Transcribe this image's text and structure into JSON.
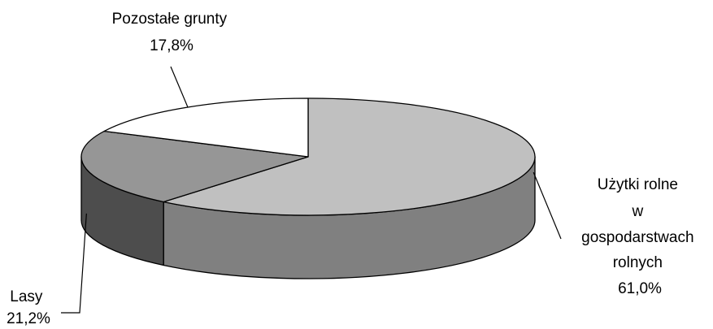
{
  "chart_data": {
    "type": "pie",
    "style": "3d",
    "slices": [
      {
        "label_lines": [
          "Użytki rolne",
          "w",
          "gospodarstwach",
          "rolnych"
        ],
        "value_label": "61,0%",
        "value": 61.0
      },
      {
        "label_lines": [
          "Lasy"
        ],
        "value_label": "21,2%",
        "value": 21.2
      },
      {
        "label_lines": [
          "Pozostałe grunty"
        ],
        "value_label": "17,8%",
        "value": 17.8
      }
    ],
    "colors": {
      "top": [
        "#c0c0c0",
        "#969696",
        "#ffffff"
      ],
      "side": [
        "#808080",
        "#4d4d4d",
        "#ffffff"
      ],
      "outline": "#000000"
    }
  }
}
